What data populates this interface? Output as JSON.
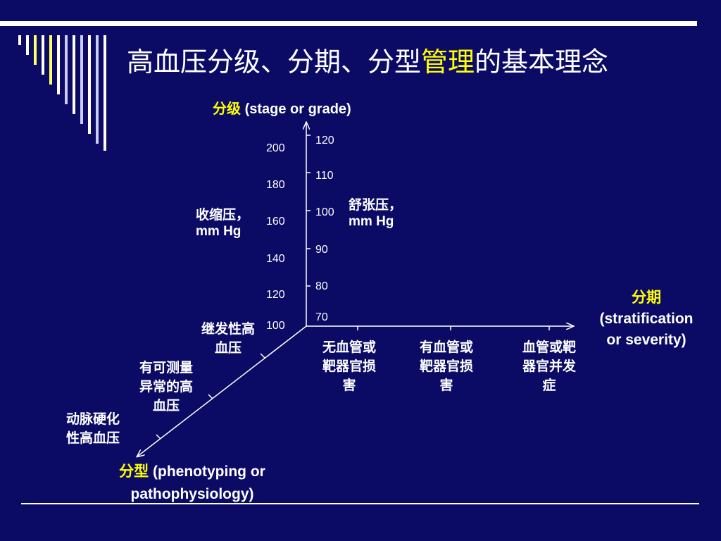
{
  "title": {
    "part1": "高血压分级、分期、分型",
    "highlight": "管理",
    "part2": "的基本理念"
  },
  "stage_axis": {
    "label_cn": "分级",
    "label_en": "(stage or grade)"
  },
  "systolic": {
    "label": [
      "收缩压，",
      "mm Hg"
    ],
    "ticks": [
      "200",
      "180",
      "160",
      "140",
      "120",
      "100"
    ]
  },
  "diastolic": {
    "label": [
      "舒张压，",
      "mm Hg"
    ],
    "ticks": [
      "120",
      "110",
      "100",
      "90",
      "80",
      "70"
    ]
  },
  "stratification_axis": {
    "label_cn": "分期",
    "label_en": [
      "(stratification",
      "or severity)"
    ],
    "items": [
      [
        "无血管或",
        "靶器官损",
        "害"
      ],
      [
        "有血管或",
        "靶器官损",
        "害"
      ],
      [
        "血管或靶",
        "器官并发",
        "症"
      ]
    ]
  },
  "phenotype_axis": {
    "label_cn": "分型",
    "label_en": [
      "(phenotyping or",
      "pathophysiology)"
    ],
    "items": [
      [
        "继发性高",
        "血压"
      ],
      [
        "有可测量",
        "异常的高",
        "血压"
      ],
      [
        "动脉硬化",
        "性高血压"
      ]
    ]
  },
  "colors": {
    "background": "#0b0b66",
    "text": "#ffffff",
    "highlight": "#ffff00"
  }
}
